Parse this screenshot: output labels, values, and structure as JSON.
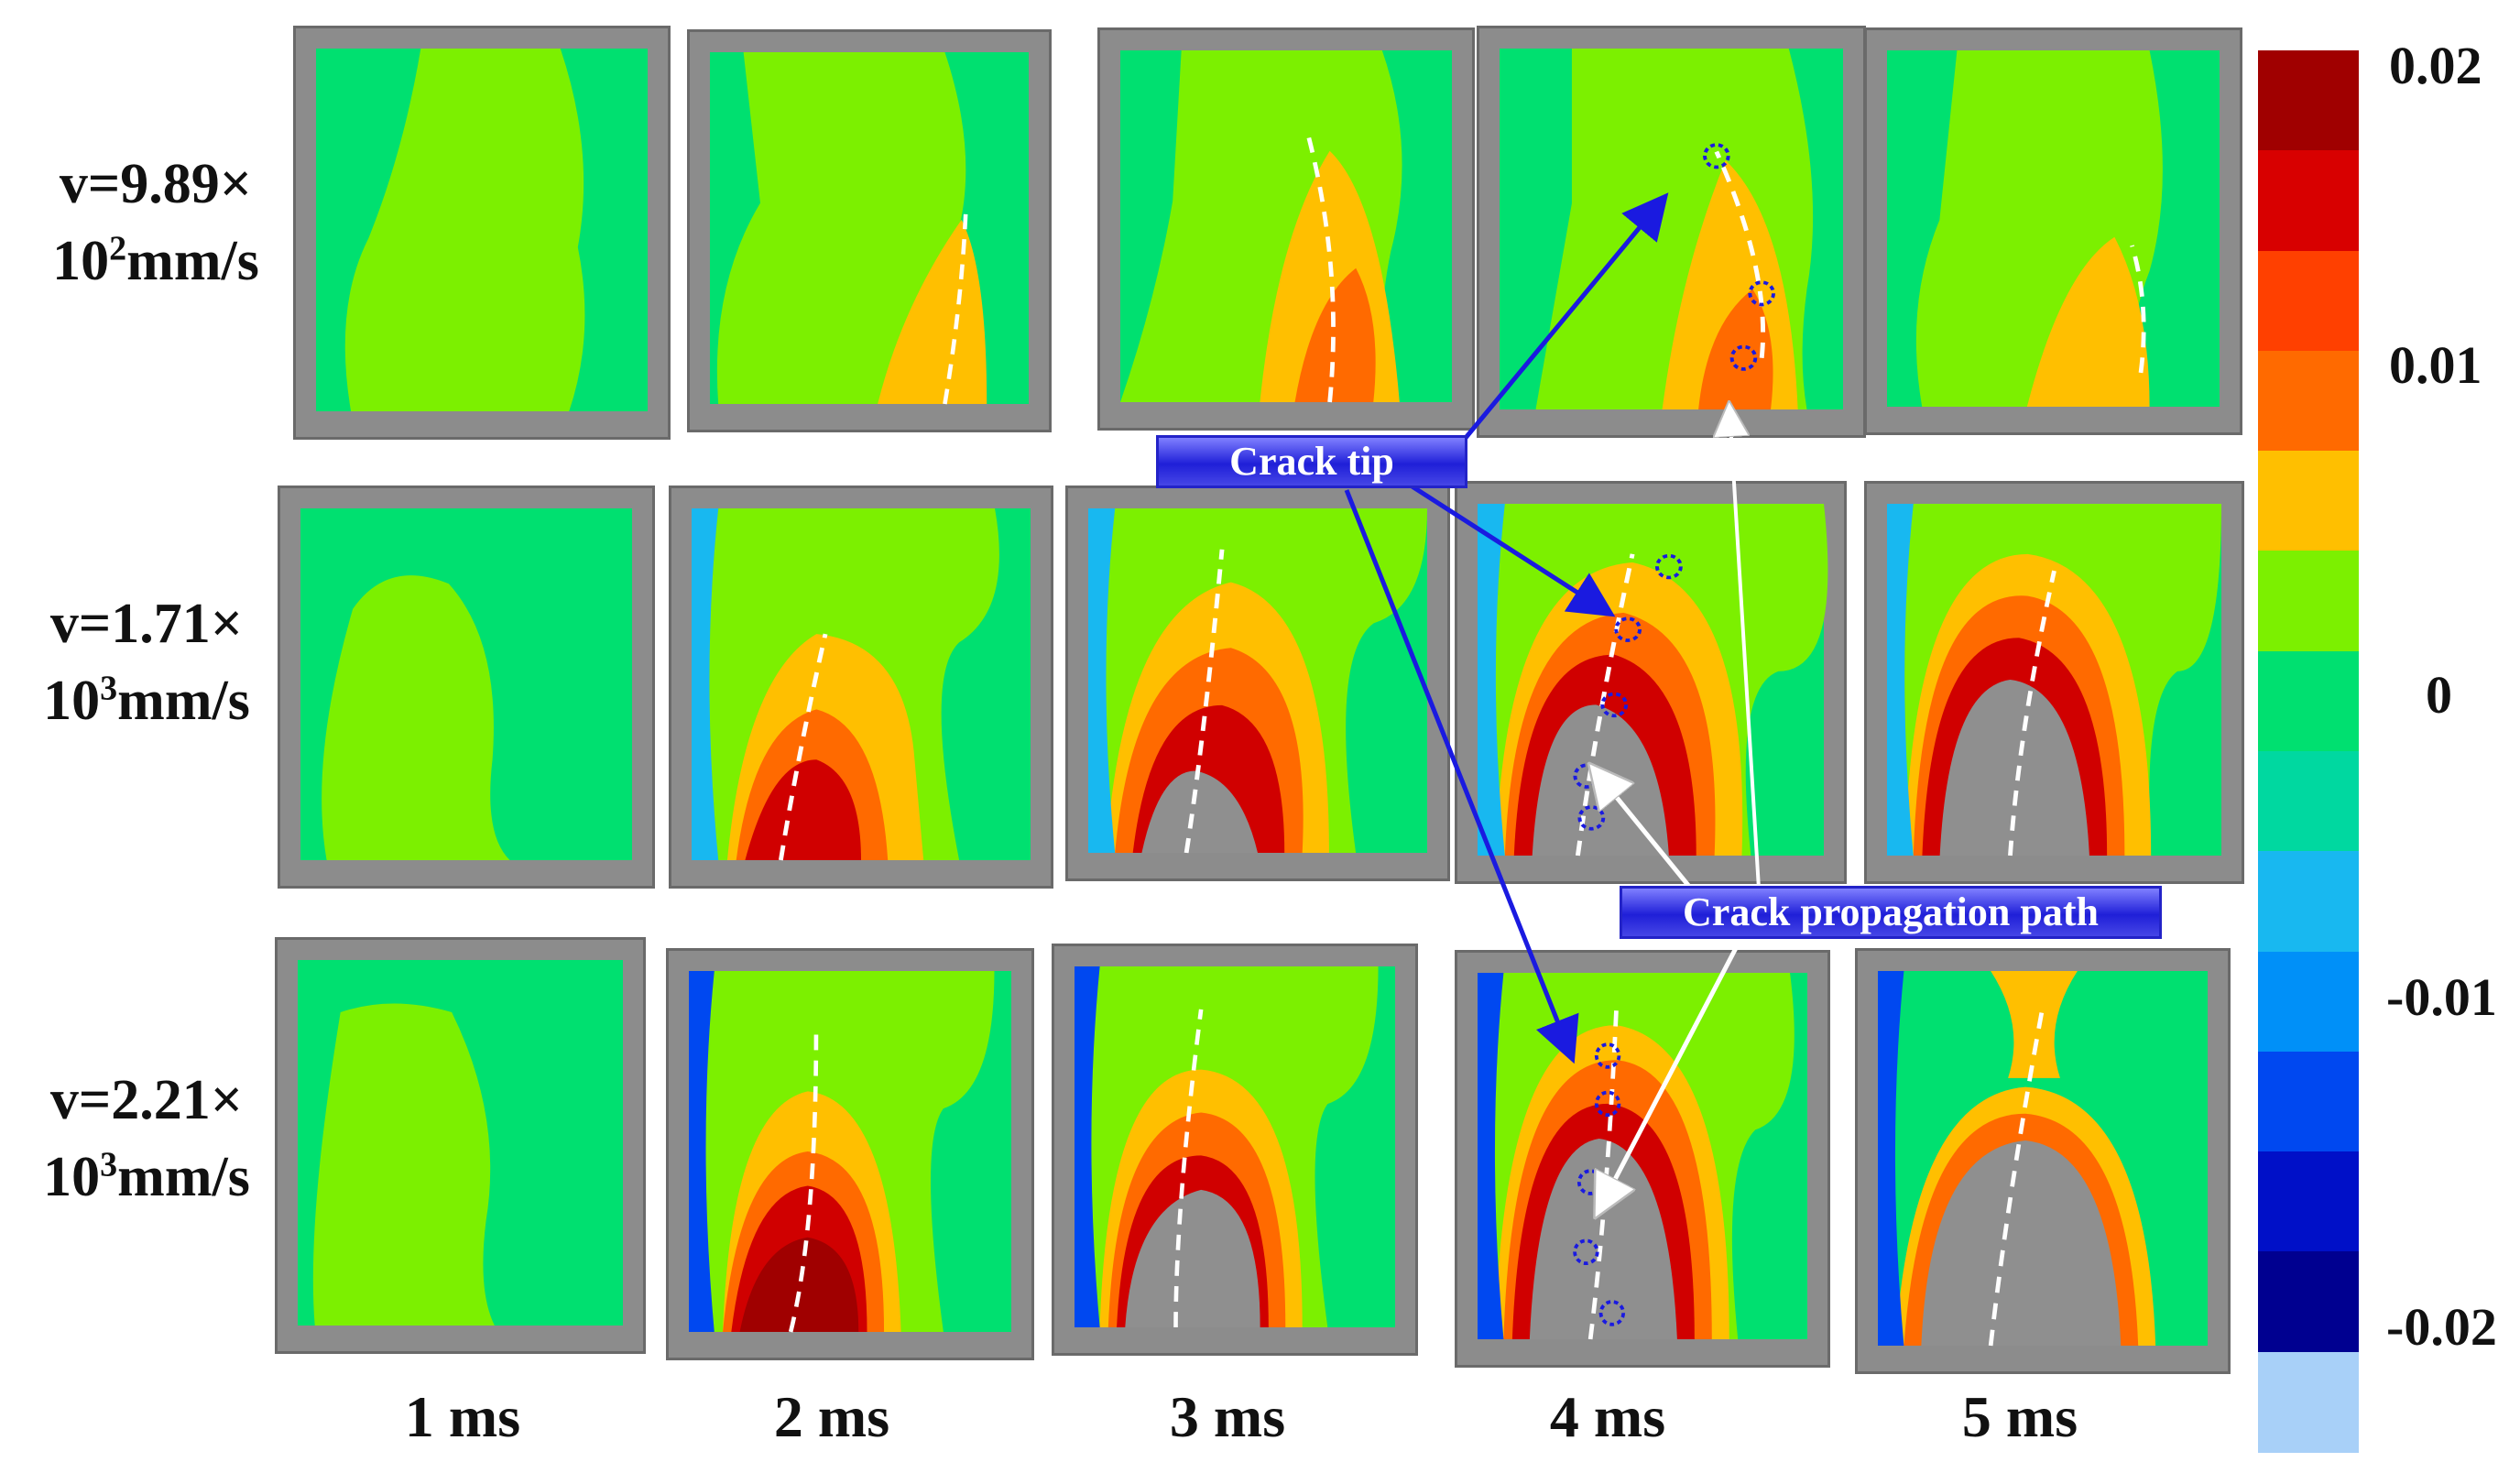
{
  "rows": [
    {
      "v_prefix": "v=9.89×",
      "v_base": "10",
      "v_exp": "2",
      "v_unit": "mm/s"
    },
    {
      "v_prefix": "v=1.71×",
      "v_base": "10",
      "v_exp": "3",
      "v_unit": "mm/s"
    },
    {
      "v_prefix": "v=2.21×",
      "v_base": "10",
      "v_exp": "3",
      "v_unit": "mm/s"
    }
  ],
  "time_labels": [
    "1 ms",
    "2 ms",
    "3 ms",
    "4 ms",
    "5 ms"
  ],
  "colorbar": {
    "tick_labels": [
      "0.02",
      "0.01",
      "0",
      "-0.01",
      "-0.02"
    ],
    "colors": [
      "#a00000",
      "#d80000",
      "#ff4000",
      "#ff6a00",
      "#ffbf00",
      "#7cf000",
      "#00e070",
      "#00d8a0",
      "#18b8f0",
      "#0090f8",
      "#0048f0",
      "#0010c8",
      "#000090",
      "#a8d0f8"
    ]
  },
  "annotations": {
    "crack_tip": "Crack tip",
    "crack_path": "Crack propagation path"
  }
}
